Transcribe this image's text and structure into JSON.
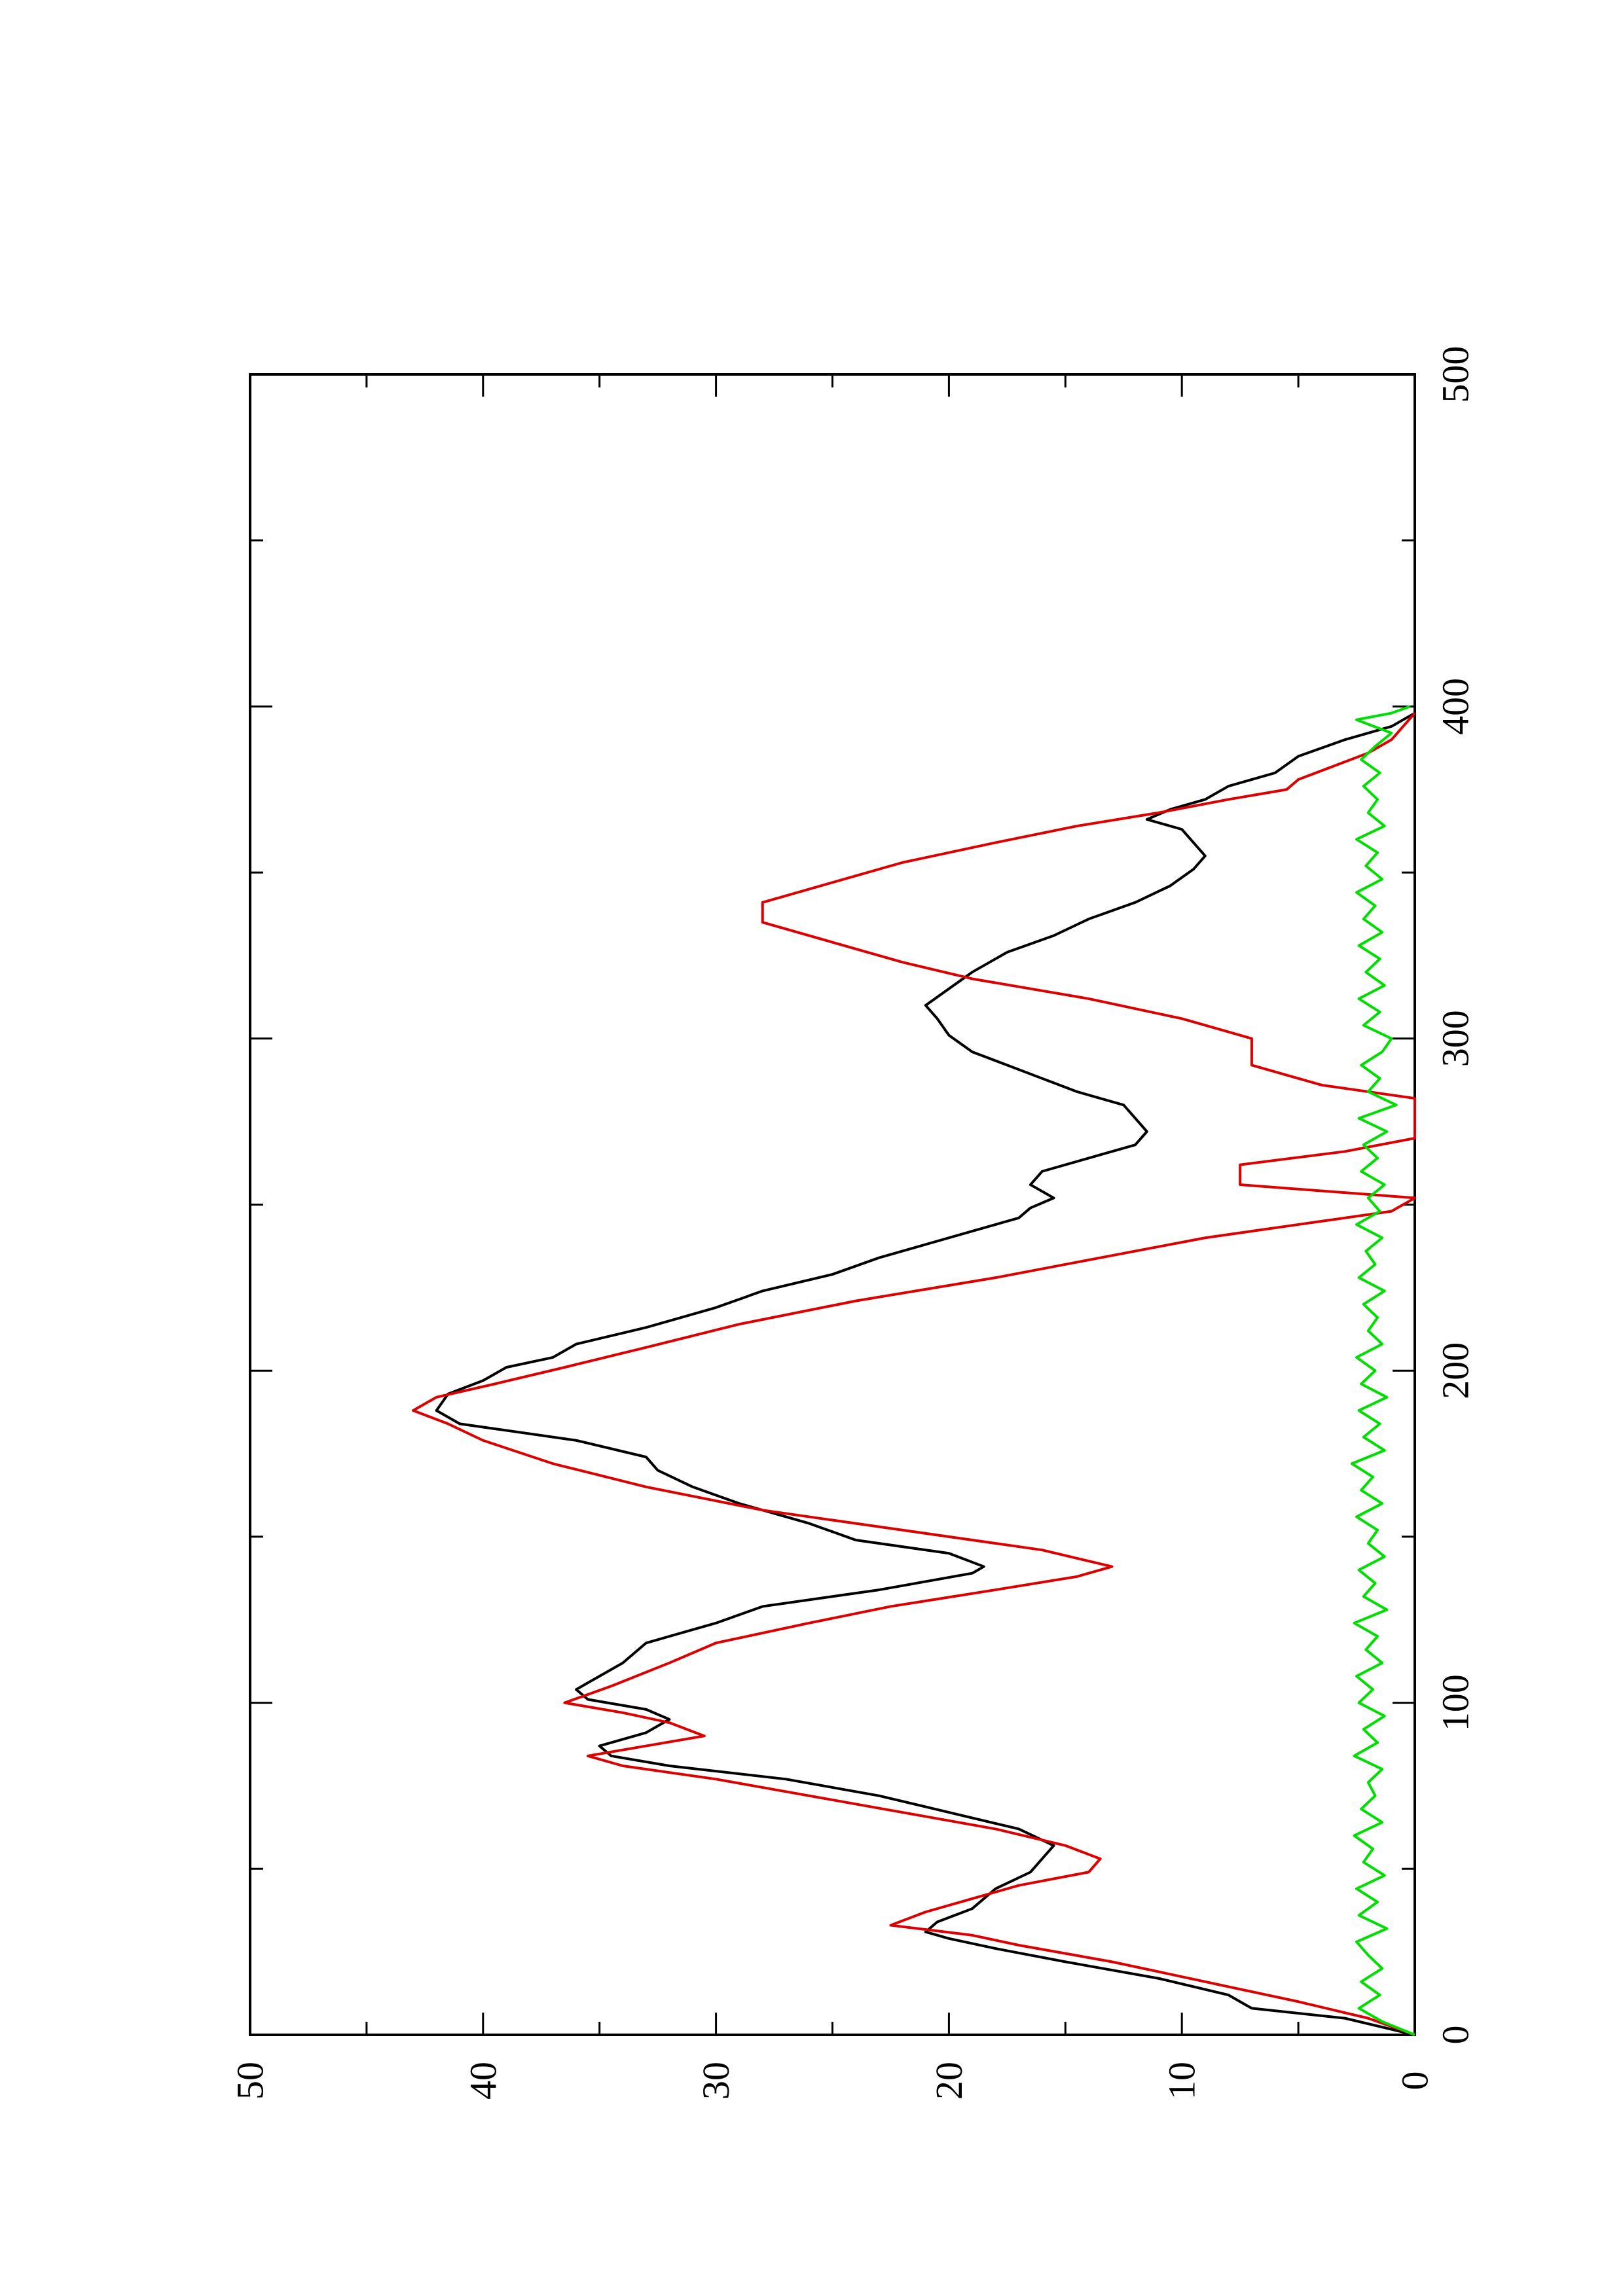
{
  "chart_data": {
    "type": "line",
    "orientation": "rotated 90 degrees counter-clockwise (x axis runs bottom-to-top)",
    "title": "",
    "xlabel": "",
    "ylabel": "",
    "xlim": [
      0,
      500
    ],
    "ylim": [
      0,
      50
    ],
    "x_ticks": [
      "0",
      "100",
      "200",
      "300",
      "400",
      "500"
    ],
    "y_ticks": [
      "0",
      "10",
      "20",
      "30",
      "40",
      "50"
    ],
    "grid": false,
    "legend": "none",
    "series": [
      {
        "color": "#000000",
        "style": "solid",
        "points": [
          [
            0,
            0
          ],
          [
            5,
            3
          ],
          [
            8,
            7
          ],
          [
            12,
            8
          ],
          [
            17,
            11
          ],
          [
            22,
            15
          ],
          [
            26,
            18
          ],
          [
            29,
            20
          ],
          [
            31,
            21
          ],
          [
            34,
            20.5
          ],
          [
            38,
            19
          ],
          [
            44,
            18
          ],
          [
            49,
            16.5
          ],
          [
            53,
            16
          ],
          [
            57,
            15.5
          ],
          [
            62,
            17
          ],
          [
            67,
            20
          ],
          [
            72,
            23
          ],
          [
            77,
            27
          ],
          [
            81,
            32
          ],
          [
            84,
            34.5
          ],
          [
            87,
            35
          ],
          [
            91,
            33
          ],
          [
            95,
            32
          ],
          [
            98,
            33
          ],
          [
            101,
            35.5
          ],
          [
            104,
            36
          ],
          [
            108,
            35
          ],
          [
            112,
            34
          ],
          [
            118,
            33
          ],
          [
            124,
            30
          ],
          [
            129,
            28
          ],
          [
            134,
            23
          ],
          [
            139,
            19
          ],
          [
            141,
            18.5
          ],
          [
            145,
            20
          ],
          [
            149,
            24
          ],
          [
            154,
            26
          ],
          [
            160,
            29
          ],
          [
            165,
            31
          ],
          [
            170,
            32.5
          ],
          [
            174,
            33
          ],
          [
            179,
            36
          ],
          [
            184,
            41
          ],
          [
            188,
            42
          ],
          [
            193,
            41.5
          ],
          [
            197,
            40
          ],
          [
            201,
            39
          ],
          [
            204,
            37
          ],
          [
            208,
            36
          ],
          [
            213,
            33
          ],
          [
            219,
            30
          ],
          [
            224,
            28
          ],
          [
            229,
            25
          ],
          [
            234,
            23
          ],
          [
            238,
            21
          ],
          [
            242,
            19
          ],
          [
            246,
            17
          ],
          [
            249,
            16.5
          ],
          [
            252,
            15.5
          ],
          [
            256,
            16.5
          ],
          [
            260,
            16
          ],
          [
            264,
            14
          ],
          [
            268,
            12
          ],
          [
            272,
            11.5
          ],
          [
            276,
            12
          ],
          [
            280,
            12.5
          ],
          [
            284,
            14.5
          ],
          [
            288,
            16
          ],
          [
            292,
            17.5
          ],
          [
            296,
            19
          ],
          [
            301,
            20
          ],
          [
            306,
            20.5
          ],
          [
            310,
            21
          ],
          [
            315,
            20
          ],
          [
            320,
            19
          ],
          [
            326,
            17.5
          ],
          [
            331,
            15.5
          ],
          [
            336,
            14
          ],
          [
            341,
            12
          ],
          [
            346,
            10.5
          ],
          [
            351,
            9.5
          ],
          [
            355,
            9
          ],
          [
            359,
            9.5
          ],
          [
            363,
            10
          ],
          [
            366,
            11.5
          ],
          [
            369,
            10.5
          ],
          [
            372,
            9
          ],
          [
            376,
            8
          ],
          [
            380,
            6
          ],
          [
            385,
            5
          ],
          [
            390,
            3
          ],
          [
            394,
            1
          ],
          [
            398,
            0
          ]
        ]
      },
      {
        "color": "#dd0000",
        "style": "solid",
        "points": [
          [
            0,
            0
          ],
          [
            5,
            2
          ],
          [
            10,
            5
          ],
          [
            16,
            9
          ],
          [
            22,
            13
          ],
          [
            27,
            17
          ],
          [
            30,
            19
          ],
          [
            33,
            22.5
          ],
          [
            37,
            21
          ],
          [
            41,
            19
          ],
          [
            45,
            17
          ],
          [
            49,
            14
          ],
          [
            53,
            13.5
          ],
          [
            57,
            15
          ],
          [
            62,
            18
          ],
          [
            67,
            22
          ],
          [
            72,
            26
          ],
          [
            77,
            30
          ],
          [
            81,
            34
          ],
          [
            84,
            35.5
          ],
          [
            87,
            33
          ],
          [
            90,
            30.5
          ],
          [
            94,
            32
          ],
          [
            97,
            34
          ],
          [
            100,
            36.5
          ],
          [
            105,
            34.5
          ],
          [
            112,
            32
          ],
          [
            118,
            30
          ],
          [
            124,
            26
          ],
          [
            129,
            22.5
          ],
          [
            134,
            18
          ],
          [
            138,
            14.5
          ],
          [
            141,
            13
          ],
          [
            146,
            16
          ],
          [
            152,
            22
          ],
          [
            158,
            28
          ],
          [
            165,
            33
          ],
          [
            172,
            37
          ],
          [
            179,
            40
          ],
          [
            184,
            41.5
          ],
          [
            188,
            43
          ],
          [
            192,
            42
          ],
          [
            196,
            39.5
          ],
          [
            201,
            36.5
          ],
          [
            207,
            33
          ],
          [
            214,
            29
          ],
          [
            221,
            24
          ],
          [
            228,
            18
          ],
          [
            234,
            13.5
          ],
          [
            240,
            9
          ],
          [
            244,
            5
          ],
          [
            248,
            1
          ],
          [
            252,
            0
          ],
          [
            256,
            7.5
          ],
          [
            262,
            7.5
          ],
          [
            266,
            3
          ],
          [
            270,
            0
          ],
          [
            276,
            0
          ],
          [
            279,
            0
          ],
          [
            282,
            0
          ],
          [
            286,
            4
          ],
          [
            292,
            7
          ],
          [
            300,
            7
          ],
          [
            306,
            10
          ],
          [
            312,
            14
          ],
          [
            318,
            19
          ],
          [
            323,
            22
          ],
          [
            329,
            25
          ],
          [
            335,
            28
          ],
          [
            341,
            28
          ],
          [
            347,
            25
          ],
          [
            353,
            22
          ],
          [
            359,
            18
          ],
          [
            364,
            14.5
          ],
          [
            368,
            11
          ],
          [
            372,
            8
          ],
          [
            375,
            5.5
          ],
          [
            378,
            5
          ],
          [
            382,
            3.5
          ],
          [
            386,
            2
          ],
          [
            390,
            1
          ],
          [
            394,
            0.5
          ],
          [
            398,
            0
          ]
        ]
      },
      {
        "color": "#00dd00",
        "style": "solid",
        "points": [
          [
            0,
            0
          ],
          [
            4,
            1.4
          ],
          [
            8,
            2.4
          ],
          [
            12,
            1.5
          ],
          [
            16,
            2.3
          ],
          [
            20,
            1.4
          ],
          [
            24,
            2.0
          ],
          [
            28,
            2.5
          ],
          [
            32,
            1.2
          ],
          [
            36,
            2.4
          ],
          [
            40,
            1.6
          ],
          [
            44,
            2.5
          ],
          [
            48,
            1.3
          ],
          [
            52,
            2.2
          ],
          [
            56,
            1.8
          ],
          [
            60,
            2.6
          ],
          [
            64,
            1.4
          ],
          [
            68,
            2.3
          ],
          [
            72,
            1.7
          ],
          [
            76,
            2.0
          ],
          [
            80,
            1.4
          ],
          [
            84,
            2.6
          ],
          [
            88,
            1.6
          ],
          [
            92,
            2.2
          ],
          [
            96,
            1.3
          ],
          [
            100,
            2.4
          ],
          [
            104,
            1.8
          ],
          [
            108,
            2.5
          ],
          [
            112,
            1.4
          ],
          [
            116,
            2.1
          ],
          [
            120,
            1.6
          ],
          [
            124,
            2.6
          ],
          [
            128,
            1.2
          ],
          [
            132,
            2.2
          ],
          [
            136,
            1.7
          ],
          [
            140,
            2.4
          ],
          [
            144,
            1.3
          ],
          [
            148,
            2.0
          ],
          [
            152,
            1.6
          ],
          [
            156,
            2.5
          ],
          [
            160,
            1.4
          ],
          [
            164,
            2.3
          ],
          [
            168,
            1.8
          ],
          [
            172,
            2.7
          ],
          [
            176,
            1.3
          ],
          [
            180,
            2.2
          ],
          [
            184,
            1.5
          ],
          [
            188,
            2.4
          ],
          [
            192,
            1.2
          ],
          [
            196,
            2.3
          ],
          [
            200,
            1.7
          ],
          [
            204,
            2.5
          ],
          [
            208,
            1.4
          ],
          [
            212,
            2.0
          ],
          [
            216,
            1.6
          ],
          [
            220,
            2.2
          ],
          [
            224,
            1.3
          ],
          [
            228,
            2.4
          ],
          [
            232,
            1.7
          ],
          [
            236,
            2.1
          ],
          [
            240,
            1.4
          ],
          [
            244,
            2.5
          ],
          [
            248,
            1.5
          ],
          [
            252,
            2.0
          ],
          [
            256,
            1.3
          ],
          [
            260,
            2.3
          ],
          [
            264,
            1.6
          ],
          [
            268,
            2.2
          ],
          [
            272,
            1.2
          ],
          [
            276,
            2.4
          ],
          [
            280,
            0.8
          ],
          [
            284,
            2.0
          ],
          [
            288,
            1.5
          ],
          [
            292,
            2.3
          ],
          [
            296,
            1.4
          ],
          [
            300,
            1.0
          ],
          [
            304,
            2.2
          ],
          [
            308,
            1.5
          ],
          [
            312,
            2.4
          ],
          [
            316,
            1.3
          ],
          [
            320,
            2.1
          ],
          [
            324,
            1.5
          ],
          [
            328,
            2.4
          ],
          [
            332,
            1.4
          ],
          [
            336,
            2.2
          ],
          [
            340,
            1.7
          ],
          [
            344,
            2.5
          ],
          [
            348,
            1.4
          ],
          [
            352,
            2.1
          ],
          [
            356,
            1.6
          ],
          [
            360,
            2.5
          ],
          [
            364,
            1.3
          ],
          [
            368,
            2.0
          ],
          [
            372,
            1.6
          ],
          [
            376,
            2.2
          ],
          [
            380,
            1.5
          ],
          [
            384,
            2.3
          ],
          [
            388,
            1.7
          ],
          [
            392,
            1.0
          ],
          [
            396,
            2.5
          ],
          [
            398,
            1.0
          ],
          [
            400,
            0.2
          ]
        ]
      }
    ]
  }
}
